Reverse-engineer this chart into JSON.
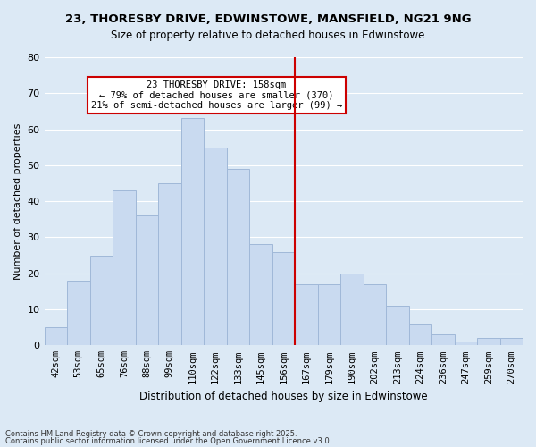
{
  "title1": "23, THORESBY DRIVE, EDWINSTOWE, MANSFIELD, NG21 9NG",
  "title2": "Size of property relative to detached houses in Edwinstowe",
  "xlabel": "Distribution of detached houses by size in Edwinstowe",
  "ylabel": "Number of detached properties",
  "categories": [
    "42sqm",
    "53sqm",
    "65sqm",
    "76sqm",
    "88sqm",
    "99sqm",
    "110sqm",
    "122sqm",
    "133sqm",
    "145sqm",
    "156sqm",
    "167sqm",
    "179sqm",
    "190sqm",
    "202sqm",
    "213sqm",
    "224sqm",
    "236sqm",
    "247sqm",
    "259sqm",
    "270sqm"
  ],
  "values": [
    5,
    18,
    25,
    43,
    36,
    45,
    63,
    55,
    49,
    28,
    26,
    17,
    17,
    20,
    17,
    11,
    6,
    3,
    1,
    2,
    2
  ],
  "bar_color": "#c9daf0",
  "bar_edge_color": "#a0b8d8",
  "vline_x": 10.5,
  "vline_color": "#cc0000",
  "annotation_text": "23 THORESBY DRIVE: 158sqm\n← 79% of detached houses are smaller (370)\n21% of semi-detached houses are larger (99) →",
  "annotation_box_color": "#cc0000",
  "ylim": [
    0,
    80
  ],
  "yticks": [
    0,
    10,
    20,
    30,
    40,
    50,
    60,
    70,
    80
  ],
  "grid_color": "#ffffff",
  "bg_color": "#dce9f5",
  "footer1": "Contains HM Land Registry data © Crown copyright and database right 2025.",
  "footer2": "Contains public sector information licensed under the Open Government Licence v3.0."
}
